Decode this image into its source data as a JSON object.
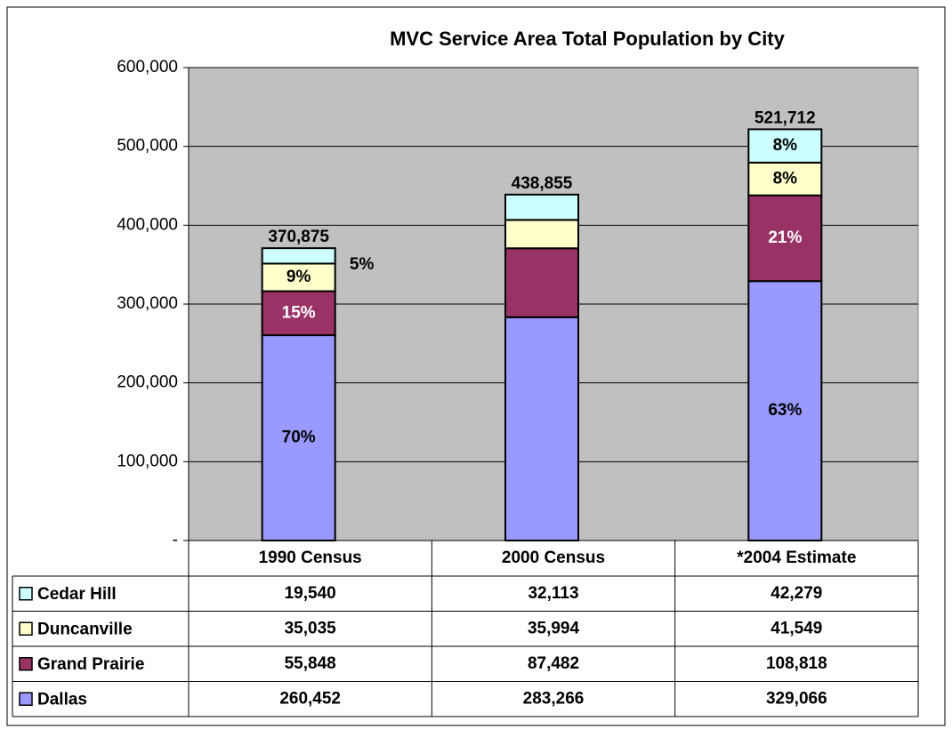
{
  "chart_data": {
    "type": "stacked_bar",
    "title": "MVC Service Area Total Population by City",
    "categories": [
      "1990 Census",
      "2000 Census",
      "*2004 Estimate"
    ],
    "series": [
      {
        "name": "Dallas",
        "color": "#9999ff",
        "values": [
          260452,
          283266,
          329066
        ],
        "value_labels": [
          "260,452",
          "283,266",
          "329,066"
        ],
        "percent_labels": [
          "70%",
          null,
          "63%"
        ]
      },
      {
        "name": "Grand Prairie",
        "color": "#993366",
        "values": [
          55848,
          87482,
          108818
        ],
        "value_labels": [
          "55,848",
          "87,482",
          "108,818"
        ],
        "percent_labels": [
          "15%",
          null,
          "21%"
        ]
      },
      {
        "name": "Duncanville",
        "color": "#ffffcc",
        "values": [
          35035,
          35994,
          41549
        ],
        "value_labels": [
          "35,035",
          "35,994",
          "41,549"
        ],
        "percent_labels": [
          "9%",
          null,
          "8%"
        ]
      },
      {
        "name": "Cedar Hill",
        "color": "#ccffff",
        "values": [
          19540,
          32113,
          42279
        ],
        "value_labels": [
          "19,540",
          "32,113",
          "42,279"
        ],
        "percent_labels": [
          "5%",
          null,
          "8%"
        ]
      }
    ],
    "totals": [
      370875,
      438855,
      521712
    ],
    "total_labels": [
      "370,875",
      "438,855",
      "521,712"
    ],
    "ylim": [
      0,
      600000
    ],
    "yticks": [
      {
        "value": 0,
        "label": "-"
      },
      {
        "value": 100000,
        "label": "100,000"
      },
      {
        "value": 200000,
        "label": "200,000"
      },
      {
        "value": 300000,
        "label": "300,000"
      },
      {
        "value": 400000,
        "label": "400,000"
      },
      {
        "value": 500000,
        "label": "500,000"
      },
      {
        "value": 600000,
        "label": "600,000"
      }
    ],
    "grid": true,
    "plot_background": "#c0c0c0"
  }
}
